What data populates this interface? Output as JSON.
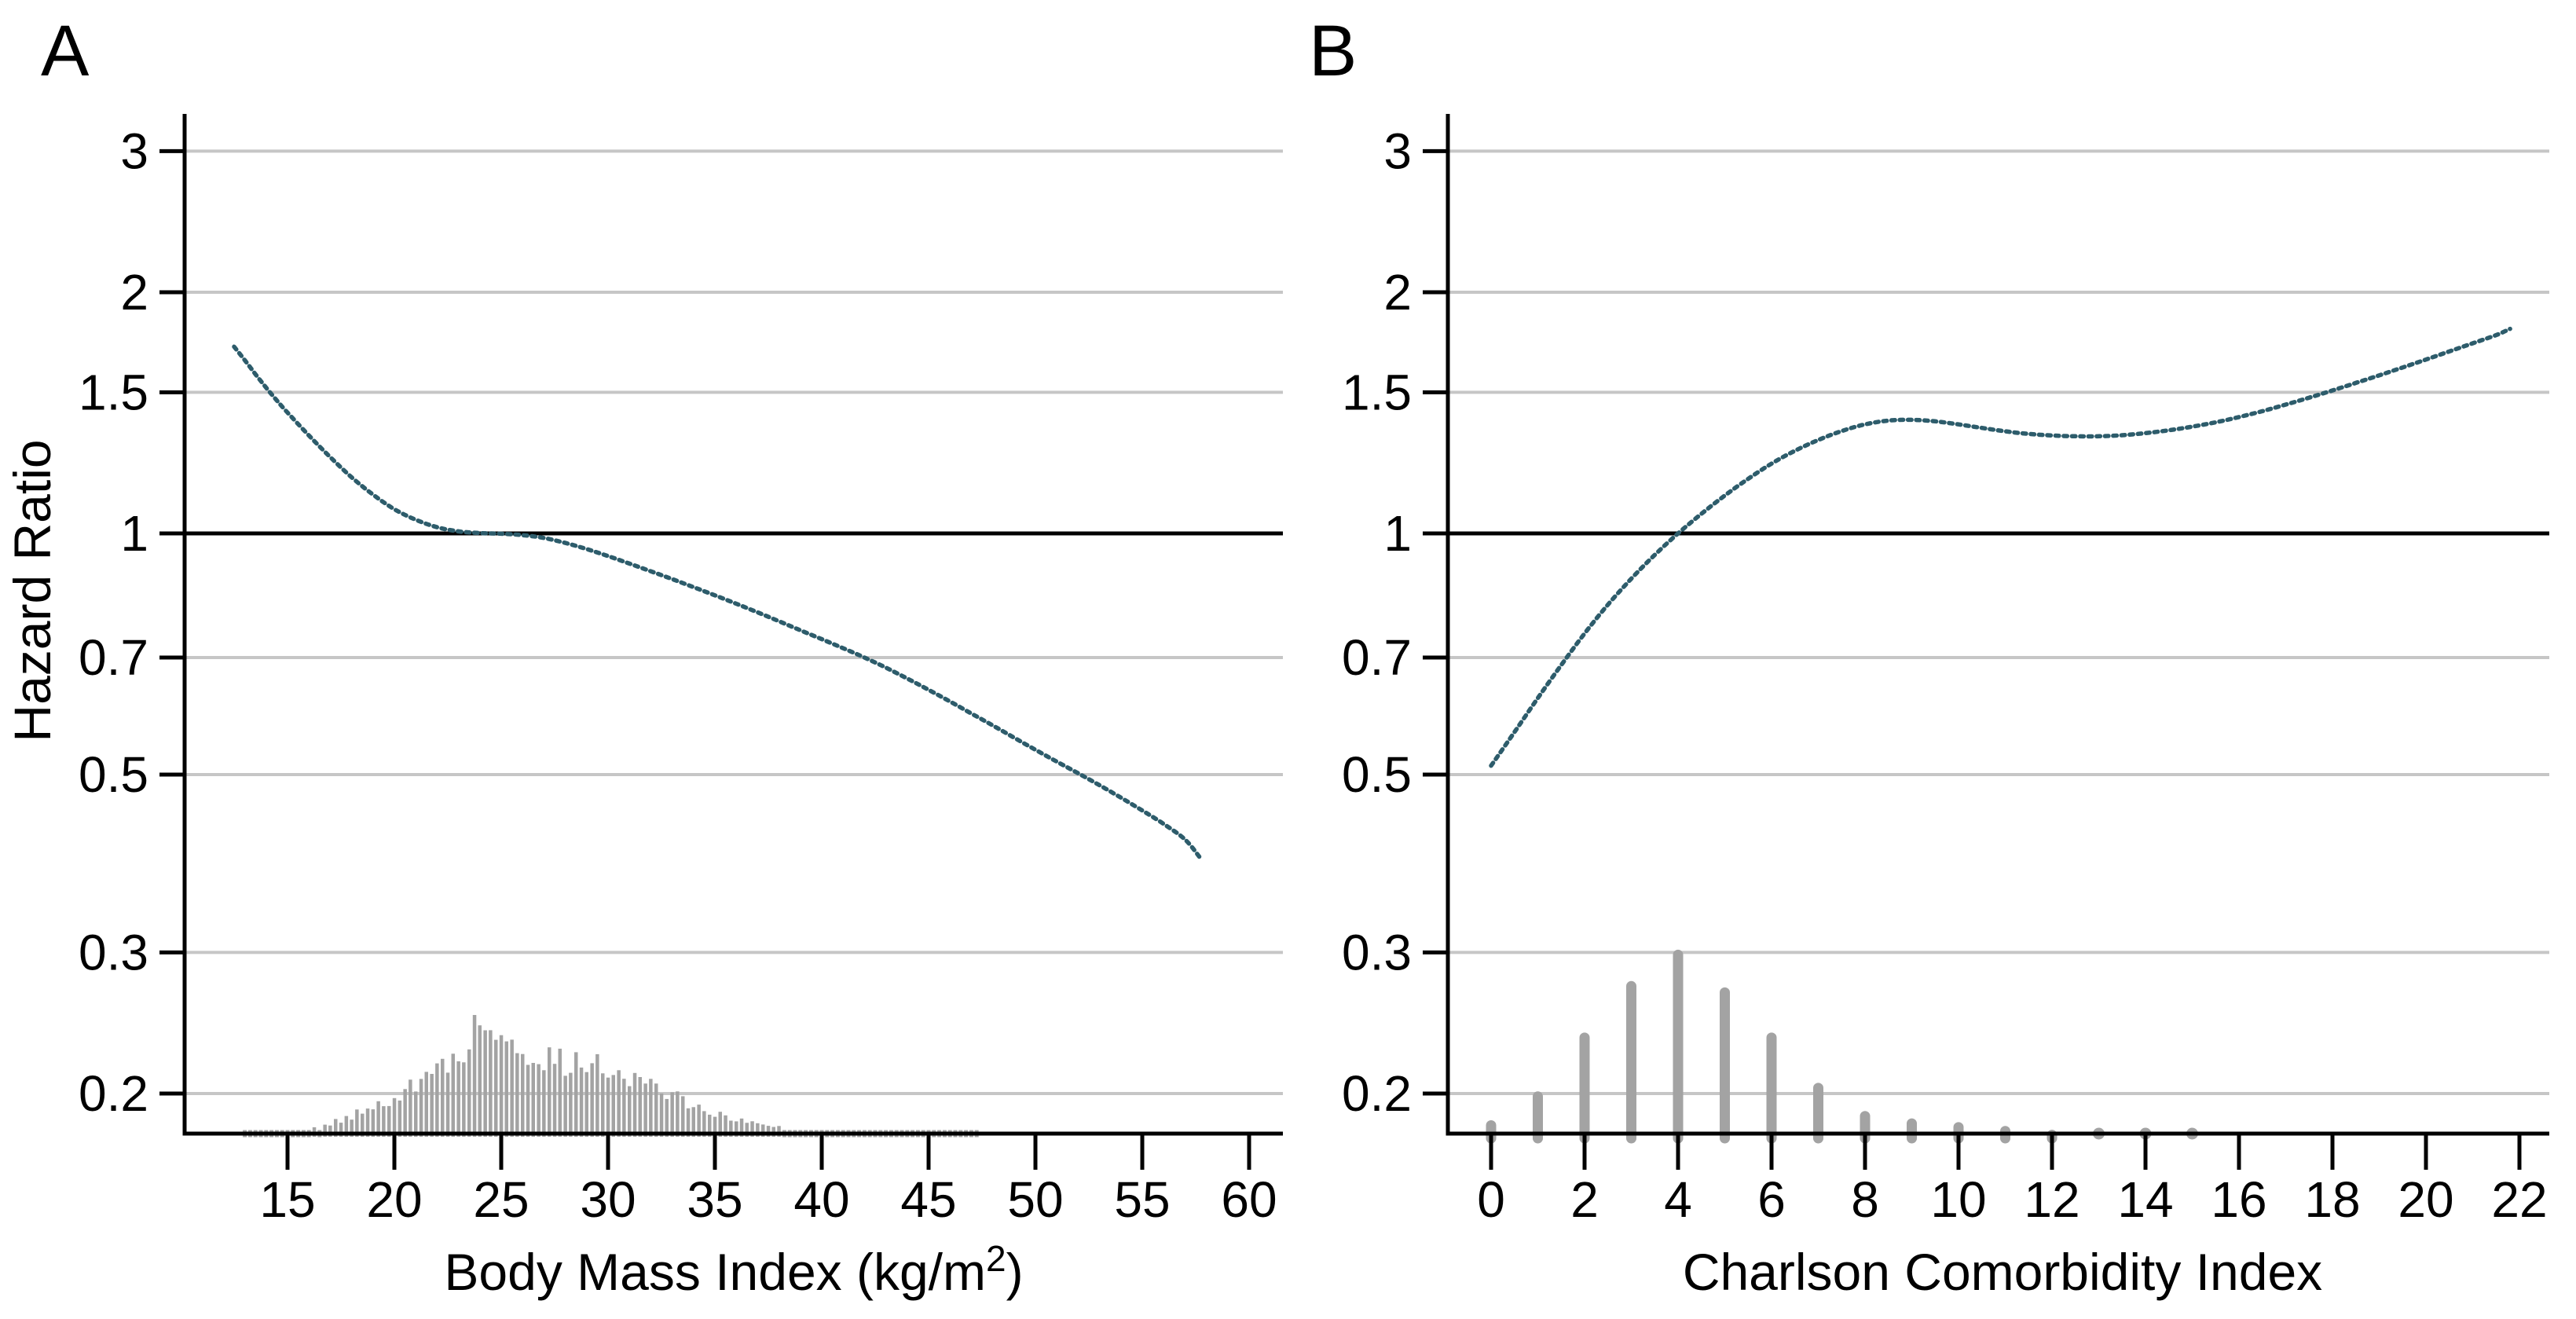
{
  "figure": {
    "background": "#ffffff",
    "ylabel": "Hazard Ratio",
    "panel_a": {
      "letter": "A",
      "xlabel_base": "Body Mass Index (kg/m",
      "xlabel_sup": "2",
      "xlabel_close": ")"
    },
    "panel_b": {
      "letter": "B",
      "xlabel": "Charlson Comorbidity Index"
    }
  },
  "colors": {
    "curve": "#2d5c6b",
    "grid": "#c6c6c6",
    "axis": "#000000",
    "reference_line": "#000000",
    "histogram": "#a3a3a3",
    "text": "#000000"
  },
  "chart_data": [
    {
      "type": "line",
      "panel": "A",
      "title": "A",
      "xlabel": "Body Mass Index (kg/m2)",
      "ylabel": "Hazard Ratio",
      "y_scale": "log",
      "grid": "horizontal-only",
      "legend": "none",
      "reference_line_y": 1,
      "y_ticks": [
        3,
        2,
        1.5,
        1,
        0.7,
        0.5,
        0.3,
        0.2
      ],
      "x_ticks": [
        15,
        20,
        25,
        30,
        35,
        40,
        45,
        50,
        55,
        60
      ],
      "x_range": [
        10.2,
        61.9
      ],
      "y_range": [
        0.177,
        3.34
      ],
      "curve_points": [
        [
          12.5,
          1.71
        ],
        [
          13,
          1.645
        ],
        [
          13.5,
          1.58
        ],
        [
          14,
          1.52
        ],
        [
          14.5,
          1.465
        ],
        [
          15,
          1.415
        ],
        [
          16,
          1.325
        ],
        [
          17,
          1.245
        ],
        [
          18,
          1.175
        ],
        [
          19,
          1.118
        ],
        [
          20,
          1.072
        ],
        [
          21,
          1.04
        ],
        [
          22,
          1.018
        ],
        [
          23,
          1.006
        ],
        [
          24,
          1.001
        ],
        [
          25,
          0.999
        ],
        [
          26,
          0.995
        ],
        [
          27,
          0.987
        ],
        [
          28,
          0.973
        ],
        [
          29,
          0.956
        ],
        [
          30,
          0.937
        ],
        [
          31,
          0.917
        ],
        [
          32,
          0.897
        ],
        [
          33,
          0.877
        ],
        [
          34,
          0.857
        ],
        [
          35,
          0.837
        ],
        [
          36,
          0.817
        ],
        [
          37,
          0.797
        ],
        [
          38,
          0.777
        ],
        [
          39,
          0.757
        ],
        [
          40,
          0.738
        ],
        [
          41,
          0.719
        ],
        [
          42,
          0.7
        ],
        [
          43,
          0.68
        ],
        [
          44,
          0.659
        ],
        [
          45,
          0.638
        ],
        [
          46,
          0.617
        ],
        [
          47,
          0.596
        ],
        [
          48,
          0.576
        ],
        [
          49,
          0.556
        ],
        [
          50,
          0.537
        ],
        [
          51,
          0.519
        ],
        [
          52,
          0.502
        ],
        [
          53,
          0.485
        ],
        [
          54,
          0.468
        ],
        [
          55,
          0.451
        ],
        [
          56,
          0.434
        ],
        [
          57,
          0.415
        ],
        [
          57.7,
          0.394
        ]
      ],
      "histogram": {
        "style": "spike",
        "bin_start": 13,
        "bin_end": 47.25,
        "bin_step": 0.25,
        "baseline_value": 0.177,
        "dot_threshold": 0.1815,
        "jitter": {
          "seed": 7,
          "low": 0.78,
          "span": 0.42
        },
        "envelope": [
          [
            13,
            0.1775
          ],
          [
            14,
            0.178
          ],
          [
            15,
            0.179
          ],
          [
            16,
            0.1805
          ],
          [
            17,
            0.1835
          ],
          [
            18,
            0.1875
          ],
          [
            19,
            0.1925
          ],
          [
            20,
            0.199
          ],
          [
            21,
            0.2055
          ],
          [
            22,
            0.2135
          ],
          [
            23,
            0.2245
          ],
          [
            24,
            0.2455
          ],
          [
            25,
            0.2355
          ],
          [
            26,
            0.2285
          ],
          [
            27,
            0.2225
          ],
          [
            28,
            0.219
          ],
          [
            29,
            0.2185
          ],
          [
            30,
            0.2165
          ],
          [
            31,
            0.211
          ],
          [
            32,
            0.205
          ],
          [
            33,
            0.199
          ],
          [
            34,
            0.1935
          ],
          [
            35,
            0.1895
          ],
          [
            36,
            0.1855
          ],
          [
            37,
            0.183
          ],
          [
            38,
            0.1815
          ],
          [
            39,
            0.18
          ],
          [
            40,
            0.1795
          ],
          [
            41,
            0.179
          ],
          [
            42,
            0.1785
          ],
          [
            43,
            0.178
          ],
          [
            44,
            0.178
          ],
          [
            45,
            0.1775
          ],
          [
            46,
            0.1775
          ],
          [
            47,
            0.1775
          ]
        ]
      }
    },
    {
      "type": "line",
      "panel": "B",
      "title": "B",
      "xlabel": "Charlson Comorbidity Index",
      "ylabel": "Hazard Ratio",
      "y_scale": "log",
      "grid": "horizontal-only",
      "legend": "none",
      "reference_line_y": 1,
      "y_ticks": [
        3,
        2,
        1.5,
        1,
        0.7,
        0.5,
        0.3,
        0.2
      ],
      "x_ticks": [
        0,
        2,
        4,
        6,
        8,
        10,
        12,
        14,
        16,
        18,
        20,
        22
      ],
      "x_range": [
        -0.92,
        22.75
      ],
      "y_range": [
        0.177,
        3.34
      ],
      "curve_points": [
        [
          0,
          0.513
        ],
        [
          0.5,
          0.565
        ],
        [
          1,
          0.623
        ],
        [
          1.5,
          0.685
        ],
        [
          2,
          0.75
        ],
        [
          2.5,
          0.815
        ],
        [
          3,
          0.878
        ],
        [
          3.5,
          0.94
        ],
        [
          4,
          1.0
        ],
        [
          4.5,
          1.058
        ],
        [
          5,
          1.115
        ],
        [
          5.5,
          1.17
        ],
        [
          6,
          1.222
        ],
        [
          6.5,
          1.268
        ],
        [
          7,
          1.308
        ],
        [
          7.5,
          1.342
        ],
        [
          8,
          1.368
        ],
        [
          8.5,
          1.383
        ],
        [
          9,
          1.386
        ],
        [
          9.5,
          1.38
        ],
        [
          10,
          1.368
        ],
        [
          10.5,
          1.354
        ],
        [
          11,
          1.341
        ],
        [
          11.5,
          1.331
        ],
        [
          12,
          1.325
        ],
        [
          12.5,
          1.322
        ],
        [
          13,
          1.322
        ],
        [
          13.5,
          1.326
        ],
        [
          14,
          1.334
        ],
        [
          14.5,
          1.345
        ],
        [
          15,
          1.359
        ],
        [
          15.5,
          1.376
        ],
        [
          16,
          1.397
        ],
        [
          16.5,
          1.421
        ],
        [
          17,
          1.448
        ],
        [
          17.5,
          1.477
        ],
        [
          18,
          1.508
        ],
        [
          18.5,
          1.541
        ],
        [
          19,
          1.575
        ],
        [
          19.5,
          1.611
        ],
        [
          20,
          1.648
        ],
        [
          20.5,
          1.687
        ],
        [
          21,
          1.727
        ],
        [
          21.5,
          1.768
        ],
        [
          21.8,
          1.8
        ]
      ],
      "histogram": {
        "style": "lollipop",
        "dot_threshold": 0.1795,
        "values": [
          [
            0,
            0.185
          ],
          [
            1,
            0.201
          ],
          [
            2,
            0.238
          ],
          [
            3,
            0.276
          ],
          [
            4,
            0.302
          ],
          [
            5,
            0.271
          ],
          [
            6,
            0.238
          ],
          [
            7,
            0.206
          ],
          [
            8,
            0.19
          ],
          [
            9,
            0.186
          ],
          [
            10,
            0.184
          ],
          [
            11,
            0.182
          ],
          [
            12,
            0.18
          ],
          [
            13,
            0.179
          ],
          [
            14,
            0.1785
          ],
          [
            15,
            0.178
          ]
        ]
      }
    }
  ]
}
